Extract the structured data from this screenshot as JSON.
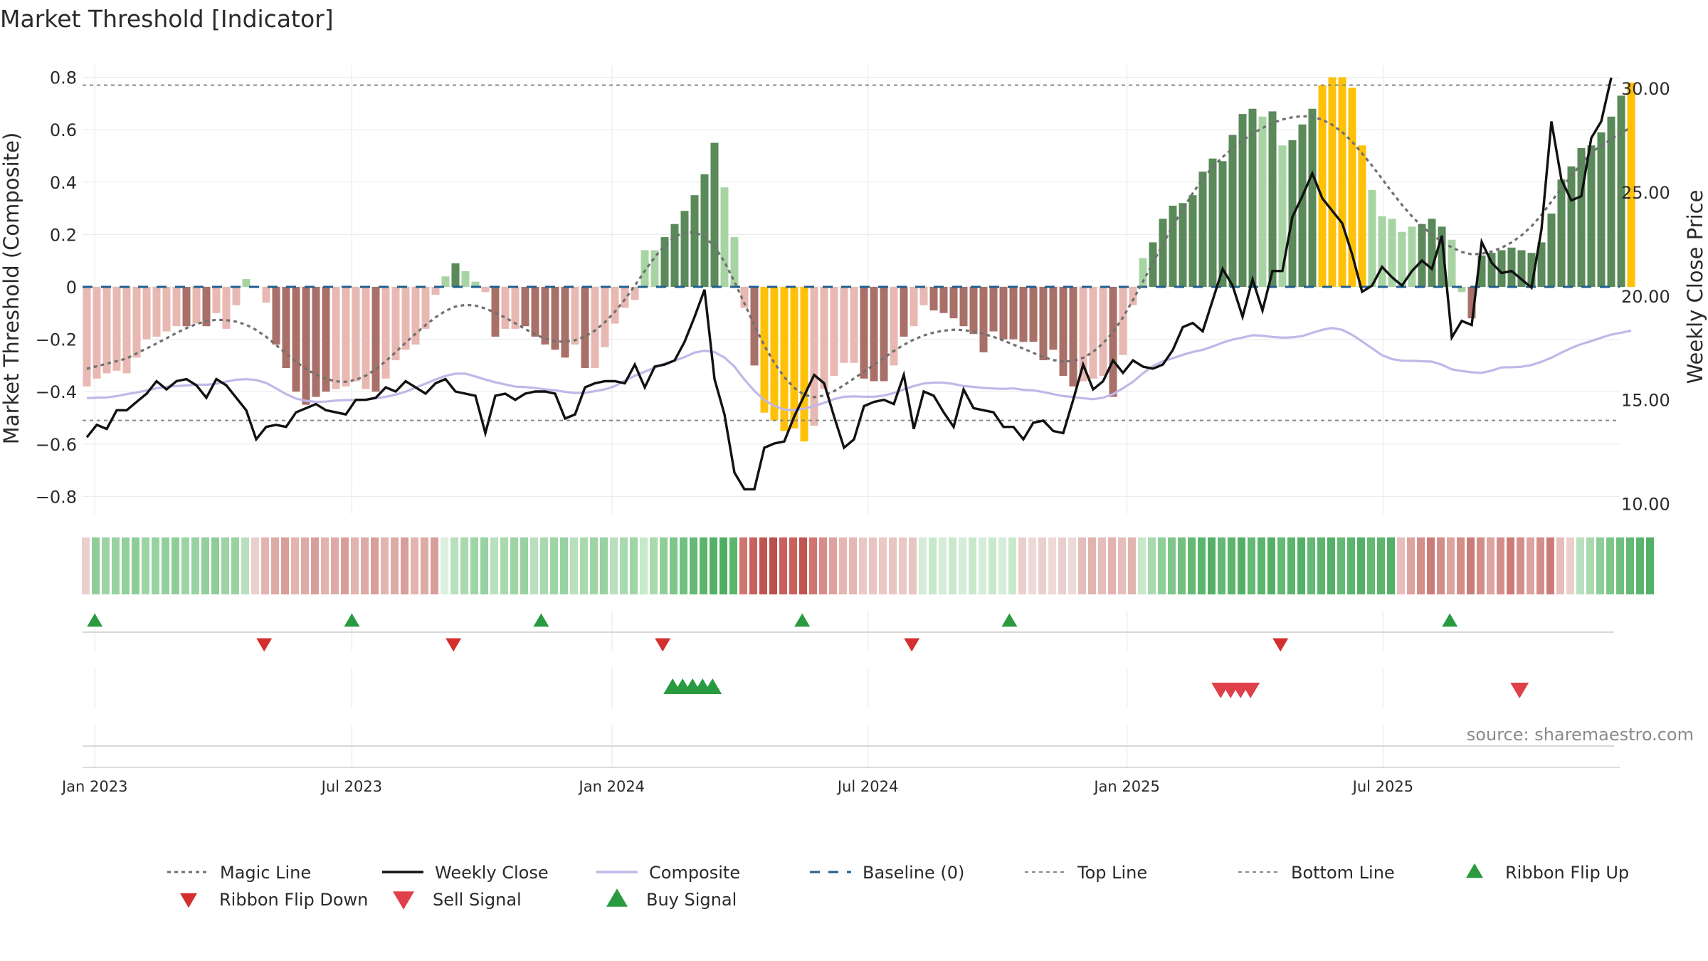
{
  "title": "Market Threshold [Indicator]",
  "source": "source: sharemaestro.com",
  "colors": {
    "dark_green": "#5a8a5a",
    "light_green": "#a8d4a4",
    "dark_red": "#a87068",
    "light_red": "#e8b8b2",
    "gold": "#ffc107",
    "magic_line": "#707070",
    "weekly_close": "#111111",
    "composite": "#c0b8e8",
    "baseline": "#1f5f8f",
    "marker_green": "#2a9a40",
    "marker_red": "#d32f2f",
    "sell_red": "#e0404a",
    "ribbon_red": "#c0504a",
    "ribbon_green": "#3fa65a"
  },
  "chart_data": {
    "type": "bar",
    "title": "Market Threshold [Indicator]",
    "ylabel_left": "Market Threshold (Composite)",
    "ylabel_right": "Weekly Close Price",
    "ylim_left": [
      -0.88,
      0.82
    ],
    "ylim_right": [
      9.51,
      31.09
    ],
    "left_ticks": [
      "0.8",
      "0.6",
      "0.4",
      "0.2",
      "0",
      "−0.2",
      "−0.4",
      "−0.6",
      "−0.8"
    ],
    "right_ticks": [
      "30.00",
      "25.00",
      "20.00",
      "15.00",
      "10.00"
    ],
    "x_ticks": [
      "Jan 2023",
      "Jul 2023",
      "Jan 2024",
      "Jul 2024",
      "Jan 2025",
      "Jul 2025"
    ],
    "x_tick_weeks": [
      0.8,
      26.6,
      52.7,
      78.4,
      104.4,
      130.1
    ],
    "top_line": 0.77,
    "bottom_line": -0.51,
    "grid": true,
    "legend_position": "bottom",
    "legend": [
      {
        "key": "magic",
        "label": "Magic Line"
      },
      {
        "key": "close",
        "label": "Weekly Close"
      },
      {
        "key": "composite",
        "label": "Composite"
      },
      {
        "key": "baseline",
        "label": "Baseline (0)"
      },
      {
        "key": "top",
        "label": "Top Line"
      },
      {
        "key": "bottom",
        "label": "Bottom Line"
      },
      {
        "key": "flipup",
        "label": "Ribbon Flip Up"
      },
      {
        "key": "flipdown",
        "label": "Ribbon Flip Down"
      },
      {
        "key": "sell",
        "label": "Sell Signal"
      },
      {
        "key": "buy",
        "label": "Buy Signal"
      }
    ],
    "bars": [
      -0.38,
      -0.35,
      -0.33,
      -0.32,
      -0.33,
      -0.27,
      -0.2,
      -0.19,
      -0.17,
      -0.15,
      -0.15,
      -0.14,
      -0.15,
      -0.1,
      -0.16,
      -0.07,
      0.03,
      0,
      -0.06,
      -0.22,
      -0.31,
      -0.4,
      -0.45,
      -0.42,
      -0.4,
      -0.39,
      -0.38,
      -0.36,
      -0.39,
      -0.4,
      -0.35,
      -0.28,
      -0.24,
      -0.22,
      -0.16,
      -0.03,
      0.04,
      0.09,
      0.06,
      0.02,
      -0.02,
      -0.19,
      -0.16,
      -0.16,
      -0.15,
      -0.19,
      -0.22,
      -0.24,
      -0.27,
      -0.22,
      -0.31,
      -0.31,
      -0.23,
      -0.14,
      -0.08,
      -0.05,
      0.14,
      0.14,
      0.19,
      0.24,
      0.29,
      0.35,
      0.43,
      0.55,
      0.38,
      0.19,
      -0.08,
      -0.3,
      -0.48,
      -0.51,
      -0.55,
      -0.54,
      -0.59,
      -0.53,
      -0.39,
      -0.34,
      -0.29,
      -0.29,
      -0.35,
      -0.36,
      -0.36,
      -0.3,
      -0.19,
      -0.15,
      -0.07,
      -0.09,
      -0.1,
      -0.12,
      -0.15,
      -0.18,
      -0.25,
      -0.17,
      -0.2,
      -0.2,
      -0.21,
      -0.21,
      -0.28,
      -0.24,
      -0.34,
      -0.38,
      -0.36,
      -0.35,
      -0.34,
      -0.42,
      -0.26,
      -0.07,
      0.11,
      0.17,
      0.26,
      0.31,
      0.32,
      0.35,
      0.44,
      0.49,
      0.48,
      0.58,
      0.66,
      0.68,
      0.65,
      0.67,
      0.54,
      0.56,
      0.62,
      0.68,
      0.77,
      0.8,
      0.8,
      0.76,
      0.54,
      0.37,
      0.27,
      0.26,
      0.21,
      0.23,
      0.24,
      0.26,
      0.23,
      0.18,
      -0.02,
      -0.12,
      0.12,
      0.13,
      0.14,
      0.15,
      0.14,
      0.13,
      0.17,
      0.28,
      0.41,
      0.46,
      0.53,
      0.54,
      0.59,
      0.65,
      0.73,
      0.78
    ],
    "bar_colors": [
      "LR",
      "LR",
      "LR",
      "LR",
      "LR",
      "LR",
      "LR",
      "LR",
      "LR",
      "LR",
      "DR",
      "LR",
      "DR",
      "LR",
      "LR",
      "LR",
      "LG",
      "LR",
      "LR",
      "DR",
      "DR",
      "DR",
      "DR",
      "DR",
      "DR",
      "LR",
      "LR",
      "LR",
      "LR",
      "DR",
      "LR",
      "LR",
      "LR",
      "LR",
      "LR",
      "LR",
      "LG",
      "DG",
      "LG",
      "LG",
      "LR",
      "DR",
      "LR",
      "LR",
      "DR",
      "DR",
      "DR",
      "DR",
      "DR",
      "LR",
      "DR",
      "LR",
      "LR",
      "LR",
      "LR",
      "LR",
      "LG",
      "LG",
      "DG",
      "DG",
      "DG",
      "DG",
      "DG",
      "DG",
      "LG",
      "LG",
      "LR",
      "DR",
      "GOLD",
      "GOLD",
      "GOLD",
      "GOLD",
      "GOLD",
      "LR",
      "LR",
      "LR",
      "LR",
      "LR",
      "DR",
      "DR",
      "DR",
      "LR",
      "DR",
      "LR",
      "LR",
      "DR",
      "DR",
      "DR",
      "DR",
      "DR",
      "DR",
      "DR",
      "DR",
      "DR",
      "DR",
      "DR",
      "DR",
      "DR",
      "DR",
      "DR",
      "LR",
      "LR",
      "LR",
      "DR",
      "LR",
      "LR",
      "LG",
      "DG",
      "DG",
      "DG",
      "DG",
      "DG",
      "DG",
      "DG",
      "DG",
      "DG",
      "DG",
      "DG",
      "LG",
      "DG",
      "LG",
      "DG",
      "DG",
      "DG",
      "GOLD",
      "GOLD",
      "GOLD",
      "GOLD",
      "GOLD",
      "LG",
      "LG",
      "LG",
      "LG",
      "LG",
      "DG",
      "DG",
      "DG",
      "LG",
      "LG",
      "DR",
      "DG",
      "DG",
      "DG",
      "DG",
      "DG",
      "DG",
      "DG",
      "DG",
      "DG",
      "DG",
      "DG",
      "DG",
      "DG",
      "DG",
      "DG",
      "GOLD"
    ],
    "weekly_close": [
      13.2,
      13.8,
      13.6,
      14.5,
      14.5,
      14.9,
      15.3,
      15.9,
      15.5,
      15.9,
      16.0,
      15.7,
      15.1,
      16.0,
      15.7,
      15.1,
      14.5,
      13.1,
      13.7,
      13.8,
      13.7,
      14.4,
      14.6,
      14.8,
      14.5,
      14.4,
      14.3,
      15.0,
      15.0,
      15.1,
      15.6,
      15.4,
      15.9,
      15.6,
      15.3,
      15.8,
      16.0,
      15.4,
      15.3,
      15.2,
      13.4,
      15.2,
      15.3,
      15.0,
      15.3,
      15.4,
      15.4,
      15.3,
      14.1,
      14.3,
      15.6,
      15.8,
      15.9,
      15.9,
      15.8,
      16.7,
      15.6,
      16.6,
      16.7,
      16.9,
      17.8,
      19.0,
      20.3,
      16.0,
      14.3,
      11.5,
      10.7,
      10.7,
      12.7,
      12.9,
      13.0,
      14.2,
      15.2,
      16.2,
      15.8,
      14.2,
      12.7,
      13.1,
      14.7,
      14.9,
      15.0,
      14.8,
      16.2,
      13.6,
      15.4,
      15.2,
      14.4,
      13.7,
      15.5,
      14.6,
      14.5,
      14.4,
      13.7,
      13.7,
      13.1,
      13.9,
      14.0,
      13.5,
      13.4,
      15.0,
      16.7,
      15.5,
      15.9,
      16.9,
      16.3,
      16.9,
      16.6,
      16.5,
      16.7,
      17.4,
      18.5,
      18.7,
      18.3,
      19.8,
      21.3,
      20.5,
      19.0,
      20.8,
      19.3,
      21.2,
      21.2,
      23.8,
      24.8,
      25.9,
      24.7,
      24.1,
      23.5,
      22.0,
      20.2,
      20.5,
      21.4,
      20.9,
      20.5,
      21.2,
      21.7,
      21.3,
      22.9,
      18.0,
      18.8,
      18.6,
      22.6,
      21.6,
      21.1,
      21.2,
      20.8,
      20.4,
      23.2,
      28.4,
      25.6,
      24.6,
      24.8,
      27.6,
      28.4,
      30.5
    ]
  },
  "ribbon": {
    "c": [
      "#eacfcc",
      "#8fce98",
      "#9cd4a4",
      "#98d2a1",
      "#92cf9c",
      "#8ecd98",
      "#9cd4a4",
      "#98d2a1",
      "#92cf9c",
      "#8ecd98",
      "#9cd4a4",
      "#98d2a1",
      "#92cf9c",
      "#8ecd98",
      "#9cd4a4",
      "#98d2a1",
      "#b8e0bd",
      "#eacfcc",
      "#e3b3b0",
      "#ddaaa6",
      "#d89e9a",
      "#e3b3b0",
      "#ddaaa6",
      "#d89e9a",
      "#e3b3b0",
      "#ddaaa6",
      "#d89e9a",
      "#e3b3b0",
      "#ddaaa6",
      "#d89e9a",
      "#e3b3b0",
      "#ddaaa6",
      "#d89e9a",
      "#e3b3b0",
      "#ddaaa6",
      "#d89e9a",
      "#ddf0df",
      "#b8e0bd",
      "#a8daae",
      "#9ed5a5",
      "#98d2a1",
      "#b8e0bd",
      "#a8daae",
      "#9ed5a5",
      "#98d2a1",
      "#b8e0bd",
      "#a8daae",
      "#9ed5a5",
      "#98d2a1",
      "#b8e0bd",
      "#a8daae",
      "#9ed5a5",
      "#98d2a1",
      "#b8e0bd",
      "#a8daae",
      "#9ed5a5",
      "#c8e8cc",
      "#a8daae",
      "#8fce98",
      "#7ec68a",
      "#72c080",
      "#64b974",
      "#5cb56d",
      "#55b067",
      "#4fad62",
      "#5cb56d",
      "#d07470",
      "#c9605c",
      "#bf5550",
      "#b8504b",
      "#c9605c",
      "#c9605c",
      "#bf5550",
      "#d07470",
      "#d88c88",
      "#dfa19d",
      "#e6b6b2",
      "#e6b6b2",
      "#eac8c5",
      "#e9c5c2",
      "#eac8c5",
      "#e9c5c2",
      "#eac8c5",
      "#e9c5c2",
      "#d4ecd8",
      "#c8e8cc",
      "#d4ecd8",
      "#c8e8cc",
      "#d4ecd8",
      "#c8e8cc",
      "#d4ecd8",
      "#c8e8cc",
      "#d4ecd8",
      "#c8e8cc",
      "#eacfcc",
      "#eed9d7",
      "#eacfcc",
      "#eed9d7",
      "#eacfcc",
      "#eed9d7",
      "#e5bebb",
      "#e3b3b0",
      "#e5bebb",
      "#e3b3b0",
      "#e5bebb",
      "#e3b3b0",
      "#c8e8cc",
      "#a8daae",
      "#8fce98",
      "#7ec68a",
      "#72c080",
      "#64b974",
      "#5cb56d",
      "#55b067",
      "#64b974",
      "#5cb56d",
      "#55b067",
      "#64b974",
      "#5cb56d",
      "#55b067",
      "#64b974",
      "#5cb56d",
      "#55b067",
      "#64b974",
      "#5cb56d",
      "#55b067",
      "#64b974",
      "#5cb56d",
      "#55b067",
      "#64b974",
      "#5cb56d",
      "#55b067",
      "#e5bebb",
      "#dca39f",
      "#d48e8a",
      "#cc7c78",
      "#d48e8a",
      "#dca39f",
      "#d48e8a",
      "#cc7c78",
      "#d48e8a",
      "#dca39f",
      "#d48e8a",
      "#cc7c78",
      "#d48e8a",
      "#dca39f",
      "#d48e8a",
      "#cc7c78",
      "#e5bebb",
      "#eacfcc",
      "#b8e0bd",
      "#a8daae",
      "#8fce98",
      "#7ec68a",
      "#72c080",
      "#64b974",
      "#5cb56d",
      "#55b067"
    ]
  },
  "markers": {
    "flip_up": [
      0.8,
      26.6,
      45.6,
      71.8,
      92.6,
      136.8
    ],
    "flip_down": [
      17.8,
      36.8,
      57.8,
      82.8,
      119.8
    ],
    "buy": [
      58.8,
      59.8,
      60.8,
      61.8,
      62.8
    ],
    "sell": [
      113.8,
      114.8,
      115.8,
      116.8,
      143.8
    ]
  }
}
